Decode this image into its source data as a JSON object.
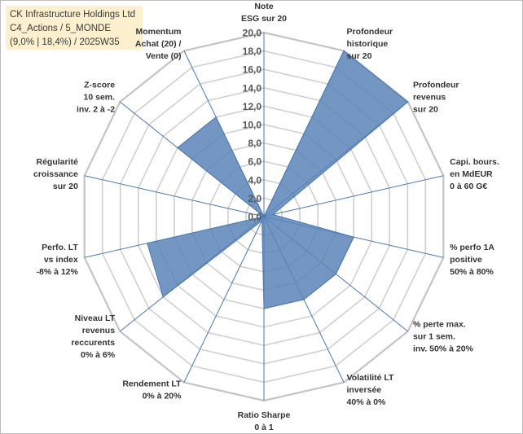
{
  "title": {
    "line1": "CK Infrastructure Holdings Ltd",
    "line2": "C4_Actions / 5_MONDE",
    "line3": "(9,0% | 18,4%) / 2025W35"
  },
  "colors": {
    "fill": "#5a84b8",
    "stroke": "#4a78b2",
    "axis": "#4a78b2",
    "grid": "#d0d0d0",
    "title_bg": "#fdf0cf"
  },
  "chart_data": {
    "type": "radar",
    "rmin": 0,
    "rmax": 20,
    "tick_step": 2,
    "tick_labels": [
      "0,0",
      "2,0",
      "4,0",
      "6,0",
      "8,0",
      "10,0",
      "12,0",
      "14,0",
      "16,0",
      "18,0",
      "20,0"
    ],
    "axes": [
      {
        "label": [
          "Note",
          "ESG sur 20"
        ],
        "value": 0
      },
      {
        "label": [
          "Profondeur",
          "historique",
          "sur 20"
        ],
        "value": 20
      },
      {
        "label": [
          "Profondeur",
          "revenus",
          "sur 20"
        ],
        "value": 20
      },
      {
        "label": [
          "Capi. bours.",
          "en MdEUR",
          "0 à 60 G€"
        ],
        "value": 1
      },
      {
        "label": [
          "% perfo 1A",
          "positive",
          "50% à 80%"
        ],
        "value": 10
      },
      {
        "label": [
          "% perte max.",
          "sur 1 sem.",
          "inv. 50% à 20%"
        ],
        "value": 10
      },
      {
        "label": [
          "Volatilité LT",
          "inversée",
          "40% à 0%"
        ],
        "value": 10
      },
      {
        "label": [
          "Ratio Sharpe",
          "0 à 1"
        ],
        "value": 10
      },
      {
        "label": [
          "Rendement LT",
          "0% à 20%"
        ],
        "value": 0.5
      },
      {
        "label": [
          "Niveau LT",
          "revenus",
          "reccurents",
          "0% à 6%"
        ],
        "value": 14
      },
      {
        "label": [
          "Perfo. LT",
          "vs index",
          "-8% à 12%"
        ],
        "value": 13
      },
      {
        "label": [
          "Régularité",
          "croissance",
          "sur 20"
        ],
        "value": 0
      },
      {
        "label": [
          "Z-score",
          "10 sem.",
          "inv. 2 à -2"
        ],
        "value": 12
      },
      {
        "label": [
          "Momentum",
          "Achat (20) /",
          "Vente (0)"
        ],
        "value": 12
      }
    ]
  }
}
